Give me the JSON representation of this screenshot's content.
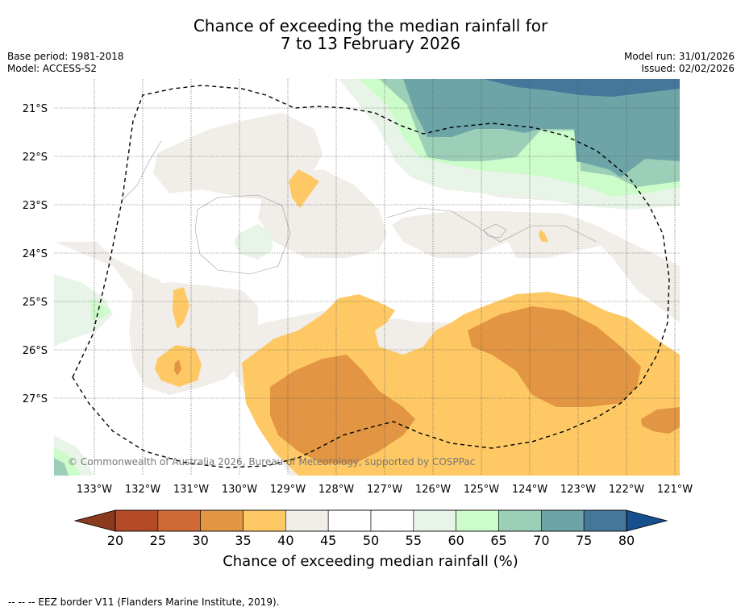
{
  "title": {
    "line1": "Chance of exceeding the median rainfall for",
    "line2": "7 to 13 February 2026"
  },
  "meta": {
    "base_period": "Base period: 1981-2018",
    "model": "Model: ACCESS-S2",
    "model_run": "Model run: 31/01/2026",
    "issued": "Issued: 02/02/2026"
  },
  "map": {
    "copyright": "© Commonwealth of Australia 2026, Bureau of Meteorology, supported by COSPPac",
    "lat_labels": [
      "21°S",
      "22°S",
      "23°S",
      "24°S",
      "25°S",
      "26°S",
      "27°S"
    ],
    "lon_labels": [
      "133°W",
      "132°W",
      "131°W",
      "130°W",
      "129°W",
      "128°W",
      "127°W",
      "126°W",
      "125°W",
      "124°W",
      "123°W",
      "122°W",
      "121°W"
    ],
    "colors": {
      "c20": "#b54a28",
      "c25": "#d06a34",
      "c30": "#e29542",
      "c35": "#fec964",
      "c40": "#f1ede8",
      "c45": "#ffffff",
      "c55": "#e8f4e8",
      "c60": "#ccfcca",
      "c65": "#9ccfb8",
      "c70": "#6ca4a8",
      "c75": "#44779a"
    }
  },
  "colorbar": {
    "ticks": [
      "20",
      "25",
      "30",
      "35",
      "40",
      "45",
      "50",
      "55",
      "60",
      "65",
      "70",
      "75",
      "80"
    ],
    "colors": [
      "#b54a28",
      "#d06a34",
      "#e29542",
      "#fec964",
      "#f1ede8",
      "#ffffff",
      "#ffffff",
      "#e8f4e8",
      "#ccfcca",
      "#9ccfb8",
      "#6ca4a8",
      "#44779a"
    ],
    "low_extend_color": "#8c3a1e",
    "high_extend_color": "#164f8c",
    "label": "Chance of exceeding median rainfall (%)"
  },
  "footer": {
    "eez_note": "--  --  -- EEZ border V11 (Flanders Marine Institute, 2019)."
  }
}
